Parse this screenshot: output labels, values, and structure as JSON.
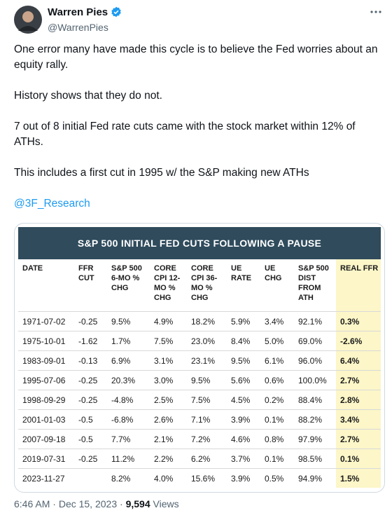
{
  "author": {
    "name": "Warren Pies",
    "handle": "@WarrenPies"
  },
  "text": [
    "One error many have made this cycle is to believe the Fed worries about an equity rally.",
    "History shows that they do not.",
    "7 out of 8 initial Fed rate cuts came with the stock market within 12% of ATHs.",
    "This includes a first cut in 1995 w/ the S&P making new ATHs"
  ],
  "link": "@3F_Research",
  "table": {
    "title": "S&P 500 INITIAL FED CUTS FOLLOWING A PAUSE",
    "headers": [
      "DATE",
      "FFR CUT",
      "S&P 500 6-MO % CHG",
      "CORE CPI 12-MO % CHG",
      "CORE CPI 36-MO % CHG",
      "UE RATE",
      "UE CHG",
      "S&P 500 DIST FROM ATH",
      "REAL FFR"
    ],
    "rows": [
      [
        "1971-07-02",
        "-0.25",
        "9.5%",
        "4.9%",
        "18.2%",
        "5.9%",
        "3.4%",
        "92.1%",
        "0.3%"
      ],
      [
        "1975-10-01",
        "-1.62",
        "1.7%",
        "7.5%",
        "23.0%",
        "8.4%",
        "5.0%",
        "69.0%",
        "-2.6%"
      ],
      [
        "1983-09-01",
        "-0.13",
        "6.9%",
        "3.1%",
        "23.1%",
        "9.5%",
        "6.1%",
        "96.0%",
        "6.4%"
      ],
      [
        "1995-07-06",
        "-0.25",
        "20.3%",
        "3.0%",
        "9.5%",
        "5.6%",
        "0.6%",
        "100.0%",
        "2.7%"
      ],
      [
        "1998-09-29",
        "-0.25",
        "-4.8%",
        "2.5%",
        "7.5%",
        "4.5%",
        "0.2%",
        "88.4%",
        "2.8%"
      ],
      [
        "2001-01-03",
        "-0.5",
        "-6.8%",
        "2.6%",
        "7.1%",
        "3.9%",
        "0.1%",
        "88.2%",
        "3.4%"
      ],
      [
        "2007-09-18",
        "-0.5",
        "7.7%",
        "2.1%",
        "7.2%",
        "4.6%",
        "0.8%",
        "97.9%",
        "2.7%"
      ],
      [
        "2019-07-31",
        "-0.25",
        "11.2%",
        "2.2%",
        "6.2%",
        "3.7%",
        "0.1%",
        "98.5%",
        "0.1%"
      ],
      [
        "2023-11-27",
        null,
        "8.2%",
        "4.0%",
        "15.6%",
        "3.9%",
        "0.5%",
        "94.9%",
        "1.5%"
      ]
    ]
  },
  "footer": {
    "time": "6:46 AM",
    "separator": "·",
    "date": "Dec 15, 2023",
    "views": "9,594",
    "views_label": "Views"
  }
}
